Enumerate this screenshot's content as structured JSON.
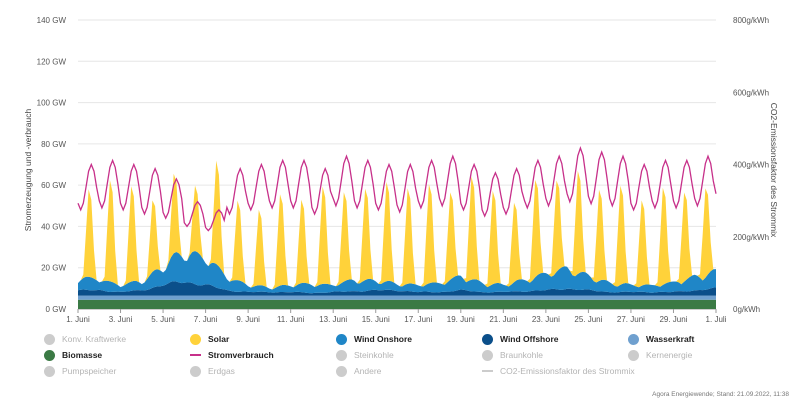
{
  "chart_data": {
    "type": "area",
    "y_left": {
      "label": "Stromerzeugung und -verbrauch",
      "ticks": [
        "0 GW",
        "20 GW",
        "40 GW",
        "60 GW",
        "80 GW",
        "100 GW",
        "120 GW",
        "140 GW"
      ],
      "range": [
        0,
        140
      ],
      "unit": "GW"
    },
    "y_right": {
      "label": "CO2-Emissionsfaktor des Strommix",
      "ticks": [
        "0g/kWh",
        "200g/kWh",
        "400g/kWh",
        "600g/kWh",
        "800g/kWh"
      ],
      "range": [
        0,
        800
      ],
      "unit": "g/kWh"
    },
    "x": {
      "ticks": [
        "1. Juni",
        "3. Juni",
        "5. Juni",
        "7. Juni",
        "9. Juni",
        "11. Juni",
        "13. Juni",
        "15. Juni",
        "17. Juni",
        "19. Juni",
        "21. Juni",
        "23. Juni",
        "25. Juni",
        "27. Juni",
        "29. Juni",
        "1. Juli"
      ],
      "range_days": [
        0,
        30
      ],
      "resolution": "hourly"
    },
    "grid": true,
    "series": [
      {
        "name": "Biomasse",
        "color": "#3b7a45",
        "approx_daily_avg_gw": 4.5
      },
      {
        "name": "Wasserkraft",
        "color": "#6fa0cf",
        "approx_daily_avg_gw": 2
      },
      {
        "name": "Wind Offshore",
        "color": "#0b4f8a",
        "approx_daily_avg_gw": [
          3,
          3,
          2,
          3,
          6,
          8,
          6,
          3,
          2,
          2,
          2,
          1.5,
          2,
          2.5,
          3,
          3,
          2,
          2,
          3,
          2,
          2,
          2.5,
          3,
          4,
          3,
          2,
          2,
          2,
          2,
          3,
          4
        ]
      },
      {
        "name": "Wind Onshore",
        "color": "#1f86c7",
        "approx_daily_avg_gw": [
          5,
          5,
          3,
          4,
          8,
          13,
          12,
          6,
          3,
          2,
          3,
          4,
          3,
          5,
          4,
          3,
          3,
          4,
          6,
          4,
          3,
          5,
          7,
          9,
          6,
          4,
          3,
          3,
          4,
          6,
          7
        ]
      },
      {
        "name": "Solar",
        "color": "#ffd23a",
        "approx_daily_peak_gw": [
          44,
          51,
          48,
          36,
          40,
          33,
          52,
          40,
          38,
          46,
          42,
          49,
          45,
          46,
          50,
          48,
          50,
          44,
          52,
          47,
          40,
          49,
          46,
          52,
          46,
          50,
          43,
          49,
          45,
          45,
          45
        ]
      },
      {
        "name": "Stromverbrauch",
        "color": "#c7308a",
        "line": true,
        "approx_daily_peak_gw": [
          70,
          72,
          70,
          68,
          63,
          52,
          48,
          68,
          70,
          72,
          72,
          68,
          74,
          72,
          70,
          70,
          72,
          74,
          70,
          66,
          68,
          72,
          74,
          78,
          76,
          74,
          70,
          72,
          72,
          74,
          78
        ],
        "approx_daily_min_gw": [
          48,
          49,
          48,
          46,
          44,
          40,
          38,
          46,
          48,
          49,
          49,
          46,
          50,
          49,
          48,
          47,
          49,
          50,
          48,
          45,
          46,
          49,
          50,
          52,
          51,
          50,
          48,
          49,
          49,
          50,
          52
        ]
      }
    ]
  },
  "legend": [
    {
      "label": "Konv. Kraftwerke",
      "color": "#cccccc",
      "active": false,
      "kind": "dot"
    },
    {
      "label": "Solar",
      "color": "#ffd23a",
      "active": true,
      "kind": "dot"
    },
    {
      "label": "Wind Onshore",
      "color": "#1f86c7",
      "active": true,
      "kind": "dot"
    },
    {
      "label": "Wind Offshore",
      "color": "#0b4f8a",
      "active": true,
      "kind": "dot"
    },
    {
      "label": "Wasserkraft",
      "color": "#6fa0cf",
      "active": true,
      "kind": "dot"
    },
    {
      "label": "Biomasse",
      "color": "#3b7a45",
      "active": true,
      "kind": "dot"
    },
    {
      "label": "Stromverbrauch",
      "color": "#c7308a",
      "active": true,
      "kind": "line"
    },
    {
      "label": "Steinkohle",
      "color": "#cccccc",
      "active": false,
      "kind": "dot"
    },
    {
      "label": "Braunkohle",
      "color": "#cccccc",
      "active": false,
      "kind": "dot"
    },
    {
      "label": "Kernenergie",
      "color": "#cccccc",
      "active": false,
      "kind": "dot"
    },
    {
      "label": "Pumpspeicher",
      "color": "#cccccc",
      "active": false,
      "kind": "dot"
    },
    {
      "label": "Erdgas",
      "color": "#cccccc",
      "active": false,
      "kind": "dot"
    },
    {
      "label": "Andere",
      "color": "#cccccc",
      "active": false,
      "kind": "dot"
    },
    {
      "label": "CO2-Emissionsfaktor des Strommix",
      "color": "#cccccc",
      "active": false,
      "kind": "line"
    }
  ],
  "footer": "Agora Energiewende; Stand: 21.09.2022, 11:38"
}
